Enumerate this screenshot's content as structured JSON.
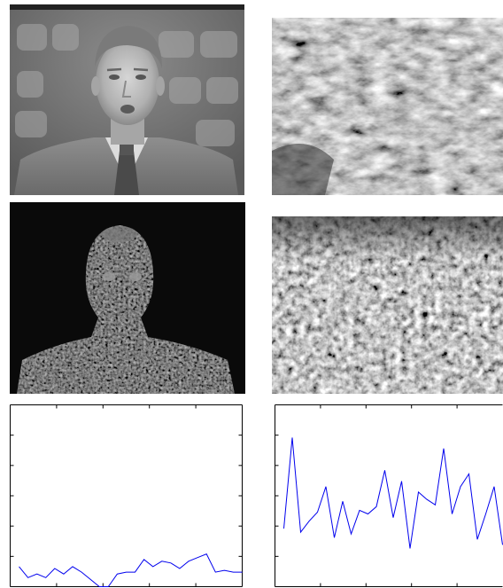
{
  "figure": {
    "panels": [
      {
        "id": "anchor-frame",
        "kind": "photo",
        "subject": "news-anchor-frame"
      },
      {
        "id": "water-frame",
        "kind": "photo",
        "subject": "turbulent-water-frame"
      },
      {
        "id": "anchor-residual",
        "kind": "photo",
        "subject": "anchor-difference-map"
      },
      {
        "id": "water-residual",
        "kind": "photo",
        "subject": "water-difference-map"
      }
    ]
  },
  "chart_data": [
    {
      "type": "line",
      "title": "",
      "xlabel": "",
      "ylabel": "",
      "x": [
        0,
        1,
        2,
        3,
        4,
        5,
        6,
        7,
        8,
        9,
        10,
        11,
        12,
        13,
        14,
        15,
        16,
        17,
        18,
        19,
        20,
        21,
        22,
        23,
        24,
        25
      ],
      "y": [
        0.11,
        0.05,
        0.07,
        0.05,
        0.1,
        0.07,
        0.11,
        0.08,
        0.04,
        0.0,
        0.0,
        0.07,
        0.08,
        0.08,
        0.15,
        0.11,
        0.14,
        0.13,
        0.1,
        0.14,
        0.16,
        0.18,
        0.08,
        0.09,
        0.08,
        0.08
      ],
      "ylim": [
        0,
        1
      ],
      "series_color": "#0000ee",
      "grid": false,
      "legend": "none"
    },
    {
      "type": "line",
      "title": "",
      "xlabel": "",
      "ylabel": "",
      "x": [
        0,
        1,
        2,
        3,
        4,
        5,
        6,
        7,
        8,
        9,
        10,
        11,
        12,
        13,
        14,
        15,
        16,
        17,
        18,
        19,
        20,
        21,
        22,
        23,
        24,
        25,
        26
      ],
      "y": [
        0.32,
        0.82,
        0.3,
        0.36,
        0.41,
        0.55,
        0.27,
        0.47,
        0.29,
        0.42,
        0.4,
        0.44,
        0.64,
        0.38,
        0.58,
        0.21,
        0.52,
        0.48,
        0.45,
        0.76,
        0.4,
        0.55,
        0.62,
        0.26,
        0.4,
        0.55,
        0.23
      ],
      "ylim": [
        0,
        1
      ],
      "series_color": "#0000ee",
      "grid": false,
      "legend": "none"
    }
  ]
}
